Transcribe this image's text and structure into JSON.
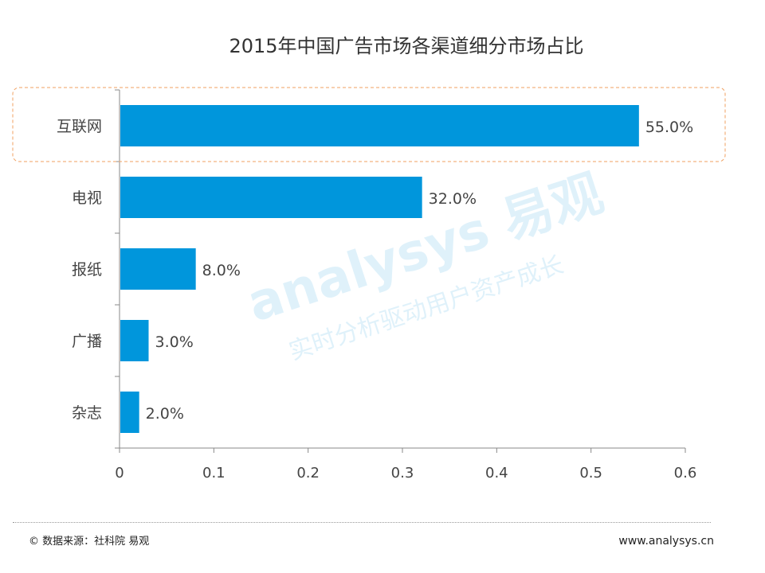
{
  "chart_data": {
    "type": "bar",
    "orientation": "horizontal",
    "title": "2015年中国广告市场各渠道细分市场占比",
    "categories": [
      "互联网",
      "电视",
      "报纸",
      "广播",
      "杂志"
    ],
    "values": [
      0.55,
      0.32,
      0.08,
      0.03,
      0.02
    ],
    "data_labels": [
      "55.0%",
      "32.0%",
      "8.0%",
      "3.0%",
      "2.0%"
    ],
    "xlim": [
      0,
      0.6
    ],
    "xticks": [
      "0",
      "0.1",
      "0.2",
      "0.3",
      "0.4",
      "0.5",
      "0.6"
    ],
    "xlabel": "",
    "ylabel": "",
    "grid": false,
    "highlighted_category": "互联网",
    "bar_color": "#0096DC",
    "highlight_color": "#F0A060"
  },
  "footer": {
    "source": "© 数据来源：社科院 易观",
    "url": "www.analysys.cn"
  },
  "watermark": {
    "logo": "analysys 易观",
    "slogan": "实时分析驱动用户资产成长"
  }
}
